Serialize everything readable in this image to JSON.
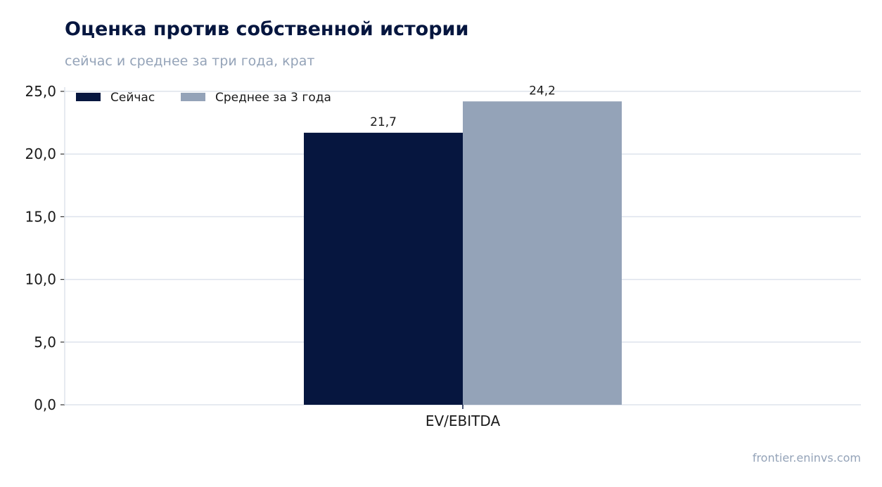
{
  "header": {
    "title": "Оценка против собственной истории",
    "subtitle": "сейчас и среднее за три года, крат"
  },
  "footer": {
    "credit": "frontier.eninvs.com"
  },
  "colors": {
    "now": "#06163f",
    "avg": "#94a3b8",
    "grid": "#dde3ec",
    "axis": "#06163f"
  },
  "chart_data": {
    "type": "bar",
    "categories": [
      "EV/EBITDA"
    ],
    "series": [
      {
        "name": "Сейчас",
        "values": [
          21.7
        ],
        "labels": [
          "21,7"
        ]
      },
      {
        "name": "Среднее за 3 года",
        "values": [
          24.2
        ],
        "labels": [
          "24,2"
        ]
      }
    ],
    "xlabel": "",
    "ylabel": "",
    "ylim": [
      0,
      25
    ],
    "yticks": [
      0,
      5,
      10,
      15,
      20,
      25
    ],
    "ytick_labels": [
      "0,0",
      "5,0",
      "10,0",
      "15,0",
      "20,0",
      "25,0"
    ],
    "grid": true,
    "legend": "top-left"
  }
}
